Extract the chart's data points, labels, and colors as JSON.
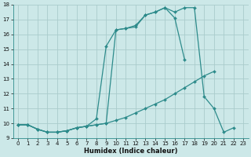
{
  "xlabel": "Humidex (Indice chaleur)",
  "bg_color": "#cce8e8",
  "grid_color": "#aacccc",
  "line_color": "#2d8b8b",
  "xlim": [
    -0.5,
    23.5
  ],
  "ylim": [
    9,
    18
  ],
  "yticks": [
    9,
    10,
    11,
    12,
    13,
    14,
    15,
    16,
    17,
    18
  ],
  "xticks": [
    0,
    1,
    2,
    3,
    4,
    5,
    6,
    7,
    8,
    9,
    10,
    11,
    12,
    13,
    14,
    15,
    16,
    17,
    18,
    19,
    20,
    21,
    22,
    23
  ],
  "line1_x": [
    0,
    1,
    2,
    3,
    4,
    5,
    6,
    7,
    8,
    9,
    10,
    11,
    12,
    13,
    14,
    15,
    16,
    17,
    18,
    19,
    20
  ],
  "line1_y": [
    9.9,
    9.9,
    9.6,
    9.4,
    9.4,
    9.5,
    9.7,
    9.8,
    9.9,
    10.0,
    10.2,
    10.4,
    10.7,
    11.0,
    11.3,
    11.6,
    12.0,
    12.4,
    12.8,
    13.2,
    13.5
  ],
  "line2_x": [
    0,
    1,
    2,
    3,
    4,
    5,
    6,
    7,
    8,
    9,
    10,
    11,
    12,
    13,
    14,
    15,
    16,
    17
  ],
  "line2_y": [
    9.9,
    9.9,
    9.6,
    9.4,
    9.4,
    9.5,
    9.7,
    9.8,
    9.9,
    10.0,
    16.3,
    16.4,
    16.5,
    17.3,
    17.5,
    17.8,
    17.1,
    14.3
  ],
  "line3_x": [
    0,
    1,
    2,
    3,
    4,
    5,
    6,
    7,
    8,
    9,
    10,
    11,
    12,
    13,
    14,
    15,
    16,
    17,
    18,
    19,
    20,
    21,
    22
  ],
  "line3_y": [
    9.9,
    9.9,
    9.6,
    9.4,
    9.4,
    9.5,
    9.7,
    9.8,
    10.3,
    15.2,
    16.3,
    16.4,
    16.6,
    17.3,
    17.5,
    17.8,
    17.5,
    17.8,
    17.8,
    11.8,
    11.0,
    9.4,
    9.7
  ]
}
